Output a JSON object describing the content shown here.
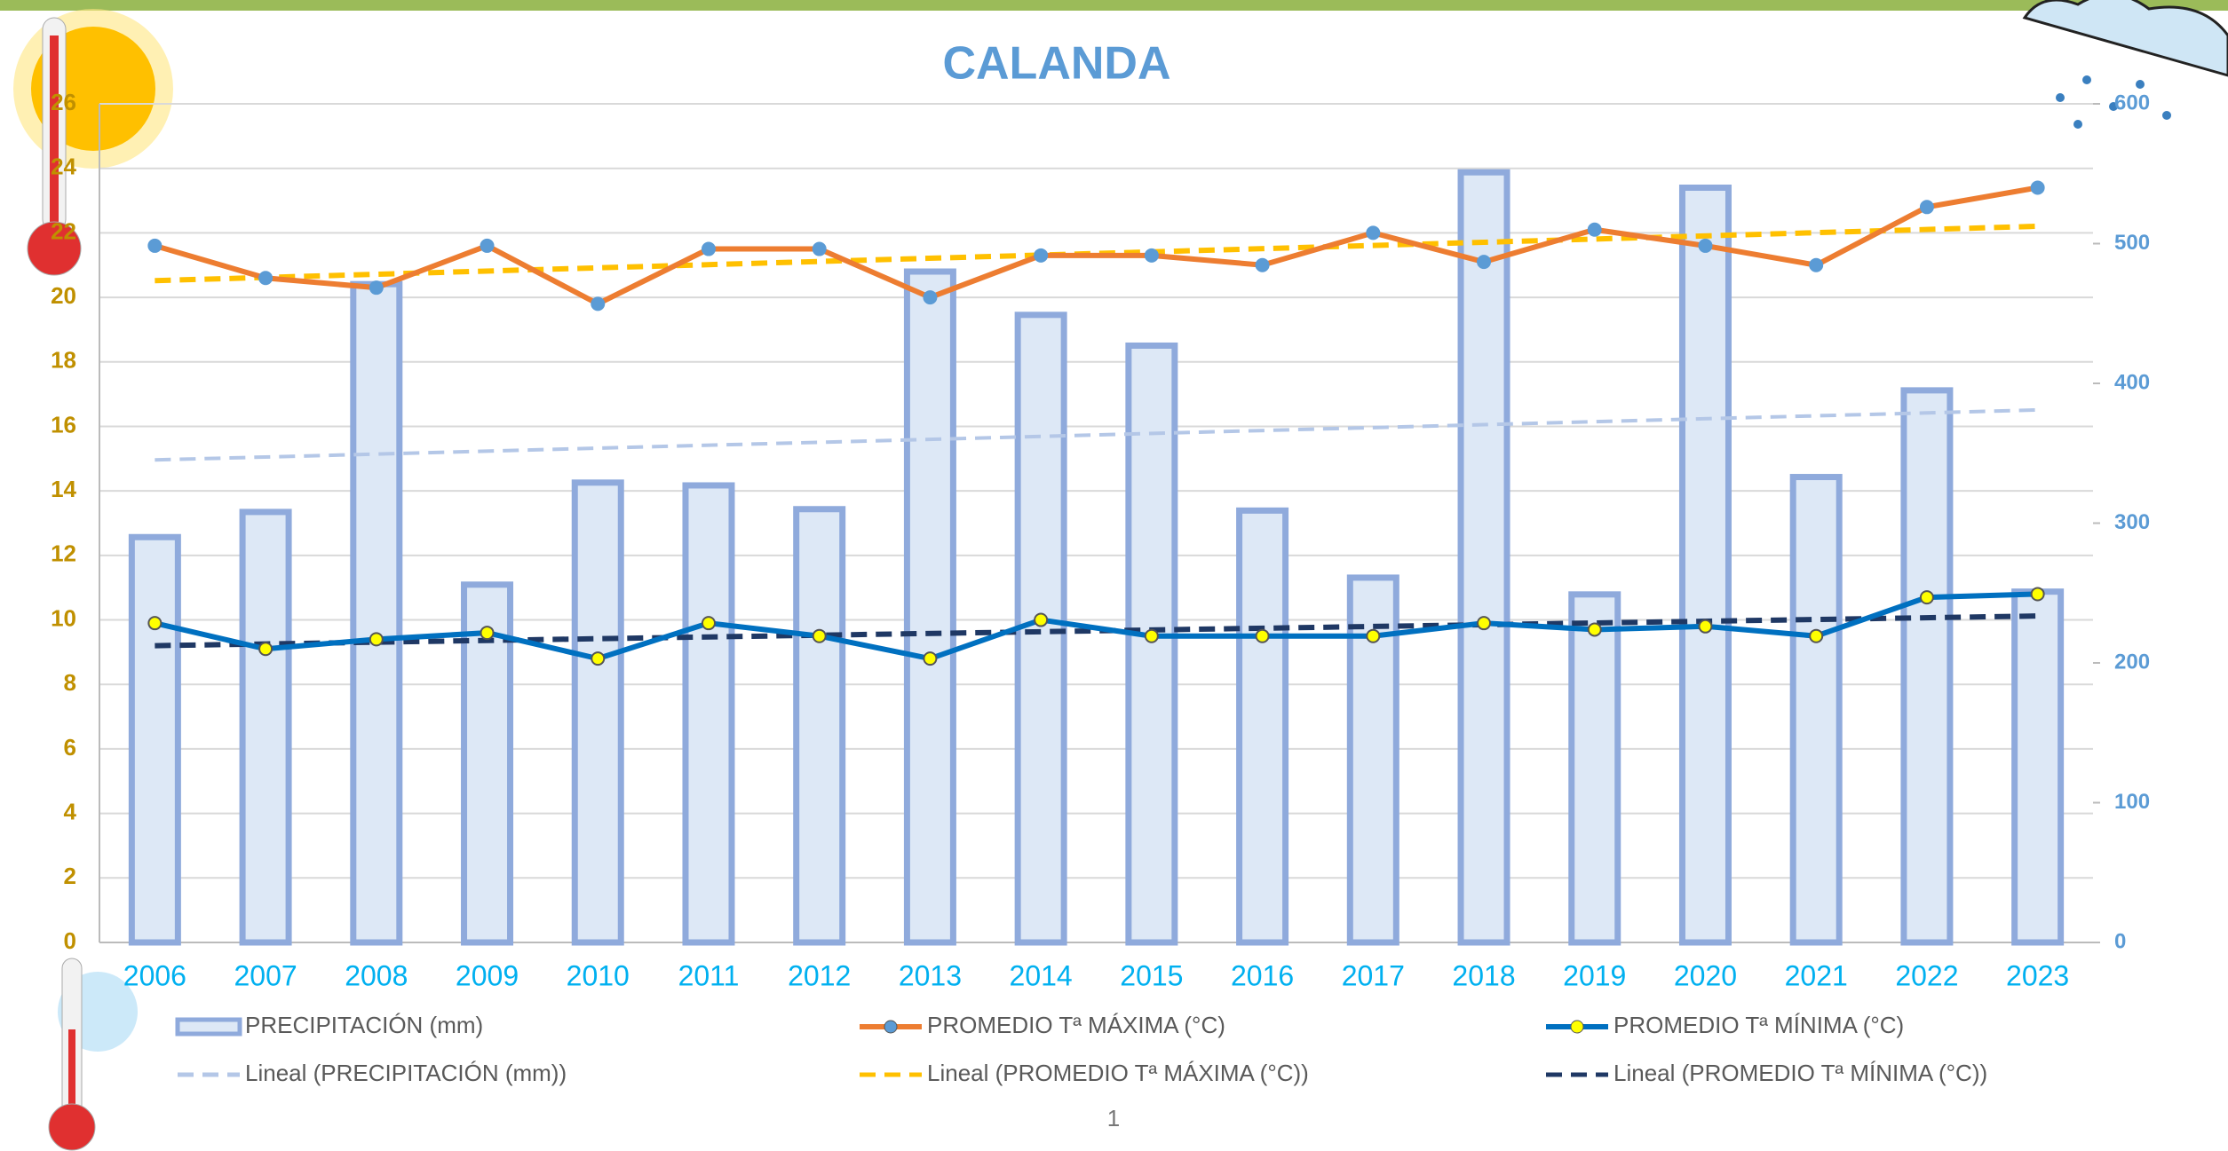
{
  "chart_data": {
    "type": "bar",
    "title": "CALANDA",
    "categories": [
      "2006",
      "2007",
      "2008",
      "2009",
      "2010",
      "2011",
      "2012",
      "2013",
      "2014",
      "2015",
      "2016",
      "2017",
      "2018",
      "2019",
      "2020",
      "2021",
      "2022",
      "2023"
    ],
    "series": [
      {
        "name": "PRECIPITACIÓN (mm)",
        "type": "bar",
        "axis": "y2",
        "color": "#8faadc",
        "fill": "#dde8f6",
        "values": [
          290,
          308,
          471,
          256,
          329,
          327,
          310,
          480,
          449,
          427,
          309,
          261,
          551,
          249,
          540,
          333,
          395,
          251
        ]
      },
      {
        "name": "PROMEDIO Tª MÁXIMA (°C)",
        "type": "line",
        "color": "#ed7d31",
        "marker_color": "#5b9bd5",
        "values": [
          21.6,
          20.6,
          20.3,
          21.6,
          19.8,
          21.5,
          21.5,
          20.0,
          21.3,
          21.3,
          21.0,
          22.0,
          21.1,
          22.1,
          21.6,
          21.0,
          22.8,
          23.4
        ]
      },
      {
        "name": "PROMEDIO Tª MÍNIMA (°C)",
        "type": "line",
        "color": "#0070c0",
        "marker_color": "#ffff00",
        "values": [
          9.9,
          9.1,
          9.4,
          9.6,
          8.8,
          9.9,
          9.5,
          8.8,
          10.0,
          9.5,
          9.5,
          9.5,
          9.9,
          9.7,
          9.8,
          9.5,
          10.7,
          10.8
        ]
      }
    ],
    "trendlines": [
      {
        "name": "Lineal (PRECIPITACIÓN (mm))",
        "series": 0,
        "color": "#b4c7e7"
      },
      {
        "name": "Lineal (PROMEDIO Tª MÁXIMA (°C))",
        "series": 1,
        "color": "#ffc000"
      },
      {
        "name": "Lineal (PROMEDIO Tª MÍNIMA (°C))",
        "series": 2,
        "color": "#1f3864"
      }
    ],
    "ylim": [
      0,
      26
    ],
    "yticks": [
      0,
      2,
      4,
      6,
      8,
      10,
      12,
      14,
      16,
      18,
      20,
      22,
      24,
      26
    ],
    "y2lim": [
      0,
      600
    ],
    "y2ticks": [
      0,
      100,
      200,
      300,
      400,
      500,
      600
    ],
    "grid": true,
    "page_number": "1"
  }
}
